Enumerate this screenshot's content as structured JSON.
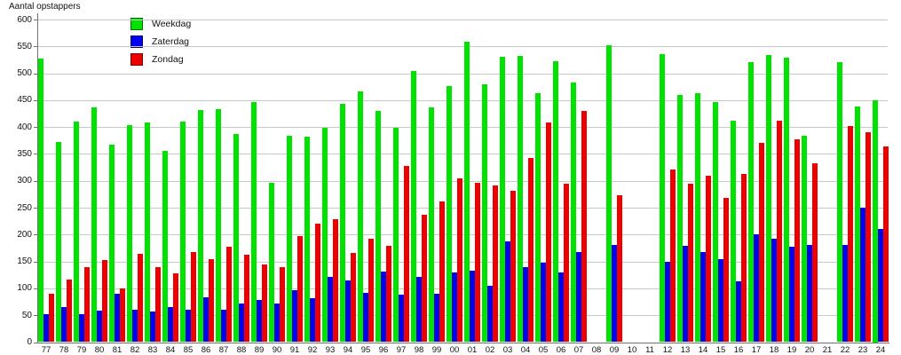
{
  "title": "Aantal opstappers",
  "colors": {
    "weekdag": "#00e300",
    "zaterdag": "#0000ee",
    "zondag": "#ee0000",
    "grid": "#c8c8c8",
    "axis": "#707070",
    "text": "#111111",
    "background": "#ffffff"
  },
  "legend": {
    "items": [
      {
        "label": "Weekdag"
      },
      {
        "label": "Zaterdag"
      },
      {
        "label": "Zondag"
      }
    ]
  },
  "chart_data": {
    "type": "bar",
    "title": "Aantal opstappers",
    "xlabel": "",
    "ylabel": "Aantal opstappers",
    "ylim": [
      0,
      600
    ],
    "y_ticks": [
      0,
      50,
      100,
      150,
      200,
      250,
      300,
      350,
      400,
      450,
      500,
      550,
      600
    ],
    "grid": "horizontal",
    "legend_position": "top-left-inside",
    "categories": [
      "77",
      "78",
      "79",
      "80",
      "81",
      "82",
      "83",
      "84",
      "85",
      "86",
      "87",
      "88",
      "89",
      "90",
      "91",
      "92",
      "93",
      "94",
      "95",
      "96",
      "97",
      "98",
      "99",
      "00",
      "01",
      "02",
      "03",
      "04",
      "05",
      "06",
      "07",
      "08",
      "09",
      "10",
      "11",
      "12",
      "13",
      "14",
      "15",
      "16",
      "17",
      "18",
      "19",
      "20",
      "21",
      "22",
      "23",
      "24"
    ],
    "series": [
      {
        "name": "Weekdag",
        "color": "#00e300",
        "values": [
          527,
          373,
          410,
          437,
          367,
          404,
          408,
          356,
          410,
          432,
          434,
          387,
          447,
          296,
          384,
          382,
          399,
          443,
          466,
          430,
          399,
          504,
          436,
          477,
          558,
          479,
          530,
          533,
          463,
          522,
          483,
          null,
          552,
          null,
          null,
          536,
          459,
          463,
          447,
          412,
          520,
          534,
          529,
          383,
          null,
          521,
          438,
          450
        ]
      },
      {
        "name": "Zaterdag",
        "color": "#0000ee",
        "values": [
          52,
          65,
          52,
          58,
          90,
          61,
          57,
          65,
          61,
          84,
          60,
          72,
          78,
          71,
          96,
          81,
          121,
          115,
          92,
          132,
          88,
          122,
          90,
          130,
          133,
          105,
          188,
          140,
          147,
          130,
          168,
          null,
          181,
          null,
          null,
          149,
          179,
          168,
          155,
          113,
          200,
          193,
          177,
          181,
          null,
          181,
          250,
          210
        ]
      },
      {
        "name": "Zondag",
        "color": "#ee0000",
        "values": [
          90,
          116,
          139,
          152,
          100,
          165,
          140,
          128,
          167,
          154,
          178,
          162,
          145,
          139,
          198,
          220,
          229,
          166,
          193,
          179,
          327,
          237,
          261,
          305,
          296,
          292,
          281,
          342,
          408,
          295,
          430,
          null,
          274,
          null,
          null,
          321,
          294,
          310,
          269,
          313,
          371,
          412,
          377,
          332,
          null,
          402,
          391,
          364
        ]
      }
    ]
  }
}
